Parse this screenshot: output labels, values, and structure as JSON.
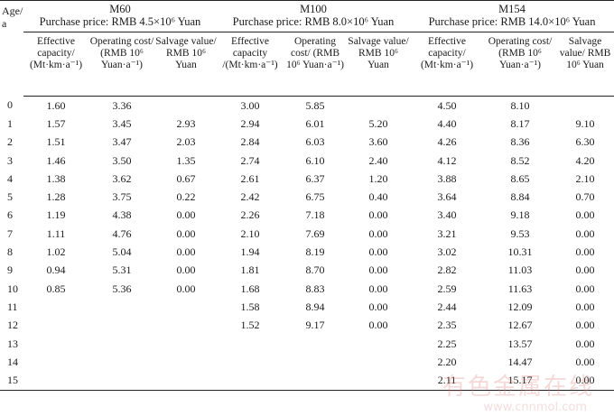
{
  "table": {
    "age_header": "Age/ a",
    "groups": [
      {
        "name": "M60",
        "price": "Purchase price: RMB 4.5×10⁶ Yuan"
      },
      {
        "name": "M100",
        "price": "Purchase price: RMB 8.0×10⁶ Yuan"
      },
      {
        "name": "M154",
        "price": "Purchase price: RMB 14.0×10⁶ Yuan"
      }
    ],
    "sub_headers": [
      [
        "Effective capacity/ (Mt·km·a⁻¹)",
        "Operating cost/ (RMB 10⁶ Yuan·a⁻¹)",
        "Salvage value/ RMB 10⁶ Yuan"
      ],
      [
        "Effective capacity /(Mt·km·a⁻¹)",
        "Operating cost/ (RMB 10⁶ Yuan·a⁻¹)",
        "Salvage value/ RMB 10⁶ Yuan"
      ],
      [
        "Effective capacity/ (Mt·km·a⁻¹)",
        "Operating cost/ (RMB 10⁶ Yuan·a⁻¹)",
        "Salvage value/ RMB 10⁶ Yuan"
      ]
    ],
    "rows": [
      [
        "0",
        "1.60",
        "3.36",
        "",
        "3.00",
        "5.85",
        "",
        "4.50",
        "8.10",
        ""
      ],
      [
        "1",
        "1.57",
        "3.45",
        "2.93",
        "2.94",
        "6.01",
        "5.20",
        "4.40",
        "8.17",
        "9.10"
      ],
      [
        "2",
        "1.51",
        "3.47",
        "2.03",
        "2.84",
        "6.03",
        "3.60",
        "4.26",
        "8.36",
        "6.30"
      ],
      [
        "3",
        "1.46",
        "3.50",
        "1.35",
        "2.74",
        "6.10",
        "2.40",
        "4.12",
        "8.52",
        "4.20"
      ],
      [
        "4",
        "1.38",
        "3.62",
        "0.67",
        "2.61",
        "6.37",
        "1.20",
        "3.88",
        "8.65",
        "2.10"
      ],
      [
        "5",
        "1.28",
        "3.75",
        "0.22",
        "2.42",
        "6.75",
        "0.40",
        "3.64",
        "8.84",
        "0.70"
      ],
      [
        "6",
        "1.19",
        "4.38",
        "0.00",
        "2.26",
        "7.18",
        "0.00",
        "3.40",
        "9.18",
        "0.00"
      ],
      [
        "7",
        "1.11",
        "4.76",
        "0.00",
        "2.10",
        "7.69",
        "0.00",
        "3.21",
        "9.53",
        "0.00"
      ],
      [
        "8",
        "1.02",
        "5.04",
        "0.00",
        "1.94",
        "8.19",
        "0.00",
        "3.02",
        "10.31",
        "0.00"
      ],
      [
        "9",
        "0.94",
        "5.31",
        "0.00",
        "1.81",
        "8.70",
        "0.00",
        "2.82",
        "11.03",
        "0.00"
      ],
      [
        "10",
        "0.85",
        "5.36",
        "0.00",
        "1.68",
        "8.83",
        "0.00",
        "2.59",
        "11.63",
        "0.00"
      ],
      [
        "11",
        "",
        "",
        "",
        "1.58",
        "8.94",
        "0.00",
        "2.44",
        "12.09",
        "0.00"
      ],
      [
        "12",
        "",
        "",
        "",
        "1.52",
        "9.17",
        "0.00",
        "2.35",
        "12.67",
        "0.00"
      ],
      [
        "13",
        "",
        "",
        "",
        "",
        "",
        "",
        "2.25",
        "13.57",
        "0.00"
      ],
      [
        "14",
        "",
        "",
        "",
        "",
        "",
        "",
        "2.20",
        "14.47",
        "0.00"
      ],
      [
        "15",
        "",
        "",
        "",
        "",
        "",
        "",
        "2.11",
        "15.17",
        "0.00"
      ]
    ]
  },
  "watermark": {
    "main": "有色金属在线",
    "sub": "www.cnnmol.com"
  }
}
